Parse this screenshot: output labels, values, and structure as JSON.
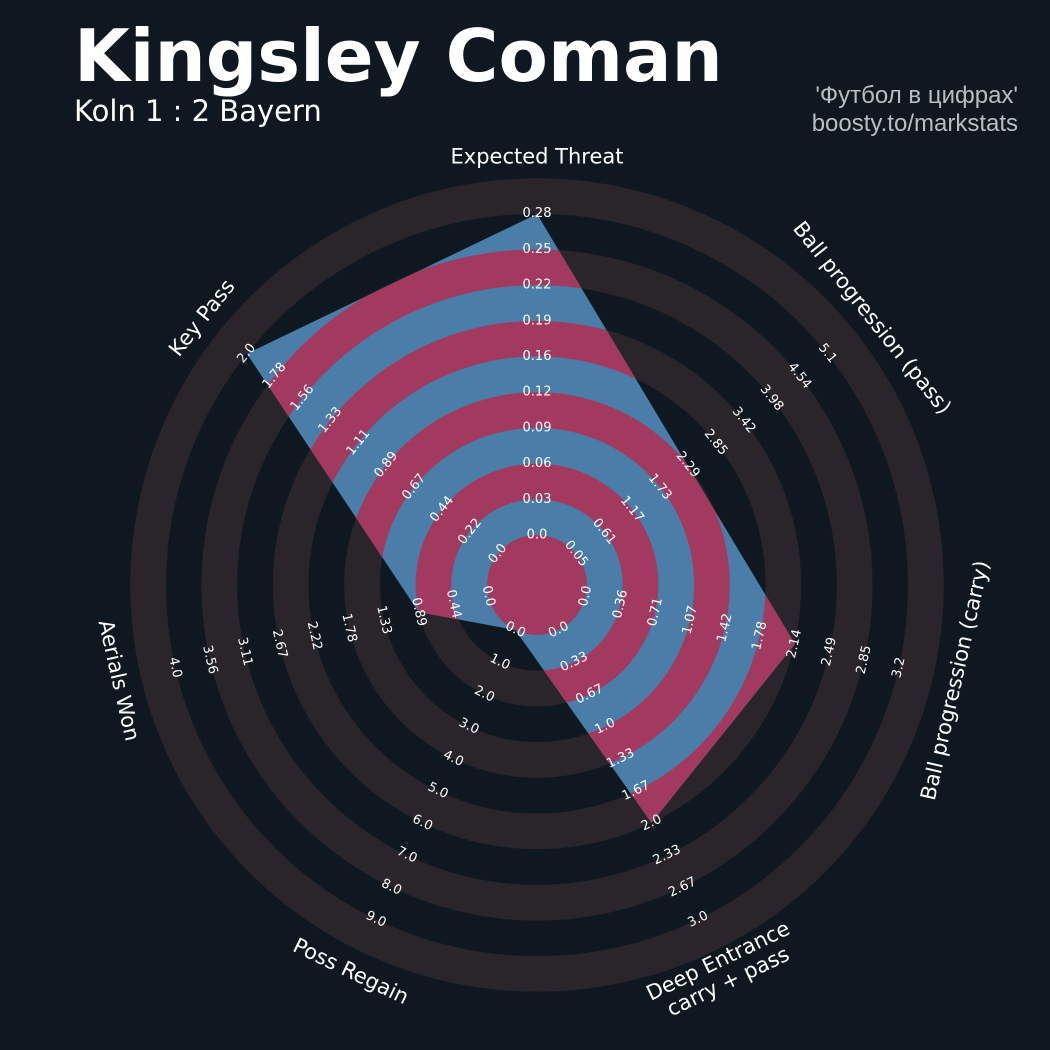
{
  "header": {
    "title": "Kingsley Coman",
    "subtitle": "Koln 1 : 2 Bayern",
    "credit_line1": "'Футбол в цифрах'",
    "credit_line2": "boosty.to/markstats"
  },
  "colors": {
    "background": "#0f1820",
    "ring_light": "#2a252b",
    "ring_pink": "#a23a60",
    "player_fill": "#4a7ea8"
  },
  "chart_data": {
    "type": "radar",
    "title": "Kingsley Coman",
    "params": [
      {
        "label": "Expected Threat",
        "value": 0.28,
        "min": 0.0,
        "max": 0.28,
        "ticks": [
          "0.0",
          "0.03",
          "0.06",
          "0.09",
          "0.12",
          "0.16",
          "0.19",
          "0.22",
          "0.25",
          "0.28"
        ]
      },
      {
        "label": "Ball progression (pass)",
        "value": 2.29,
        "min": 0.05,
        "max": 5.1,
        "ticks": [
          "0.05",
          "0.61",
          "1.17",
          "1.73",
          "2.29",
          "2.85",
          "3.42",
          "3.98",
          "4.54",
          "5.1"
        ]
      },
      {
        "label": "Ball progression (carry)",
        "value": 2.14,
        "min": 0.0,
        "max": 3.2,
        "ticks": [
          "0.0",
          "0.36",
          "0.71",
          "1.07",
          "1.42",
          "1.78",
          "2.14",
          "2.49",
          "2.85",
          "3.2"
        ]
      },
      {
        "label": "Deep Entrance\ncarry + pass",
        "value": 2.0,
        "min": 0.0,
        "max": 3.0,
        "ticks": [
          "0.0",
          "0.33",
          "0.67",
          "1.0",
          "1.33",
          "1.67",
          "2.0",
          "2.33",
          "2.67",
          "3.0"
        ]
      },
      {
        "label": "Poss Regain",
        "value": 0.0,
        "min": 0.0,
        "max": 9.0,
        "ticks": [
          "0.0",
          "1.0",
          "2.0",
          "3.0",
          "4.0",
          "5.0",
          "6.0",
          "7.0",
          "8.0",
          "9.0"
        ]
      },
      {
        "label": "Aerials Won",
        "value": 0.89,
        "min": 0.0,
        "max": 4.0,
        "ticks": [
          "0.0",
          "0.44",
          "0.89",
          "1.33",
          "1.78",
          "2.22",
          "2.67",
          "3.11",
          "3.56",
          "4.0"
        ]
      },
      {
        "label": "Key Pass",
        "value": 2.0,
        "min": 0.0,
        "max": 2.0,
        "ticks": [
          "0.0",
          "0.22",
          "0.44",
          "0.67",
          "0.89",
          "1.11",
          "1.33",
          "1.56",
          "1.78",
          "2.0"
        ]
      }
    ]
  }
}
